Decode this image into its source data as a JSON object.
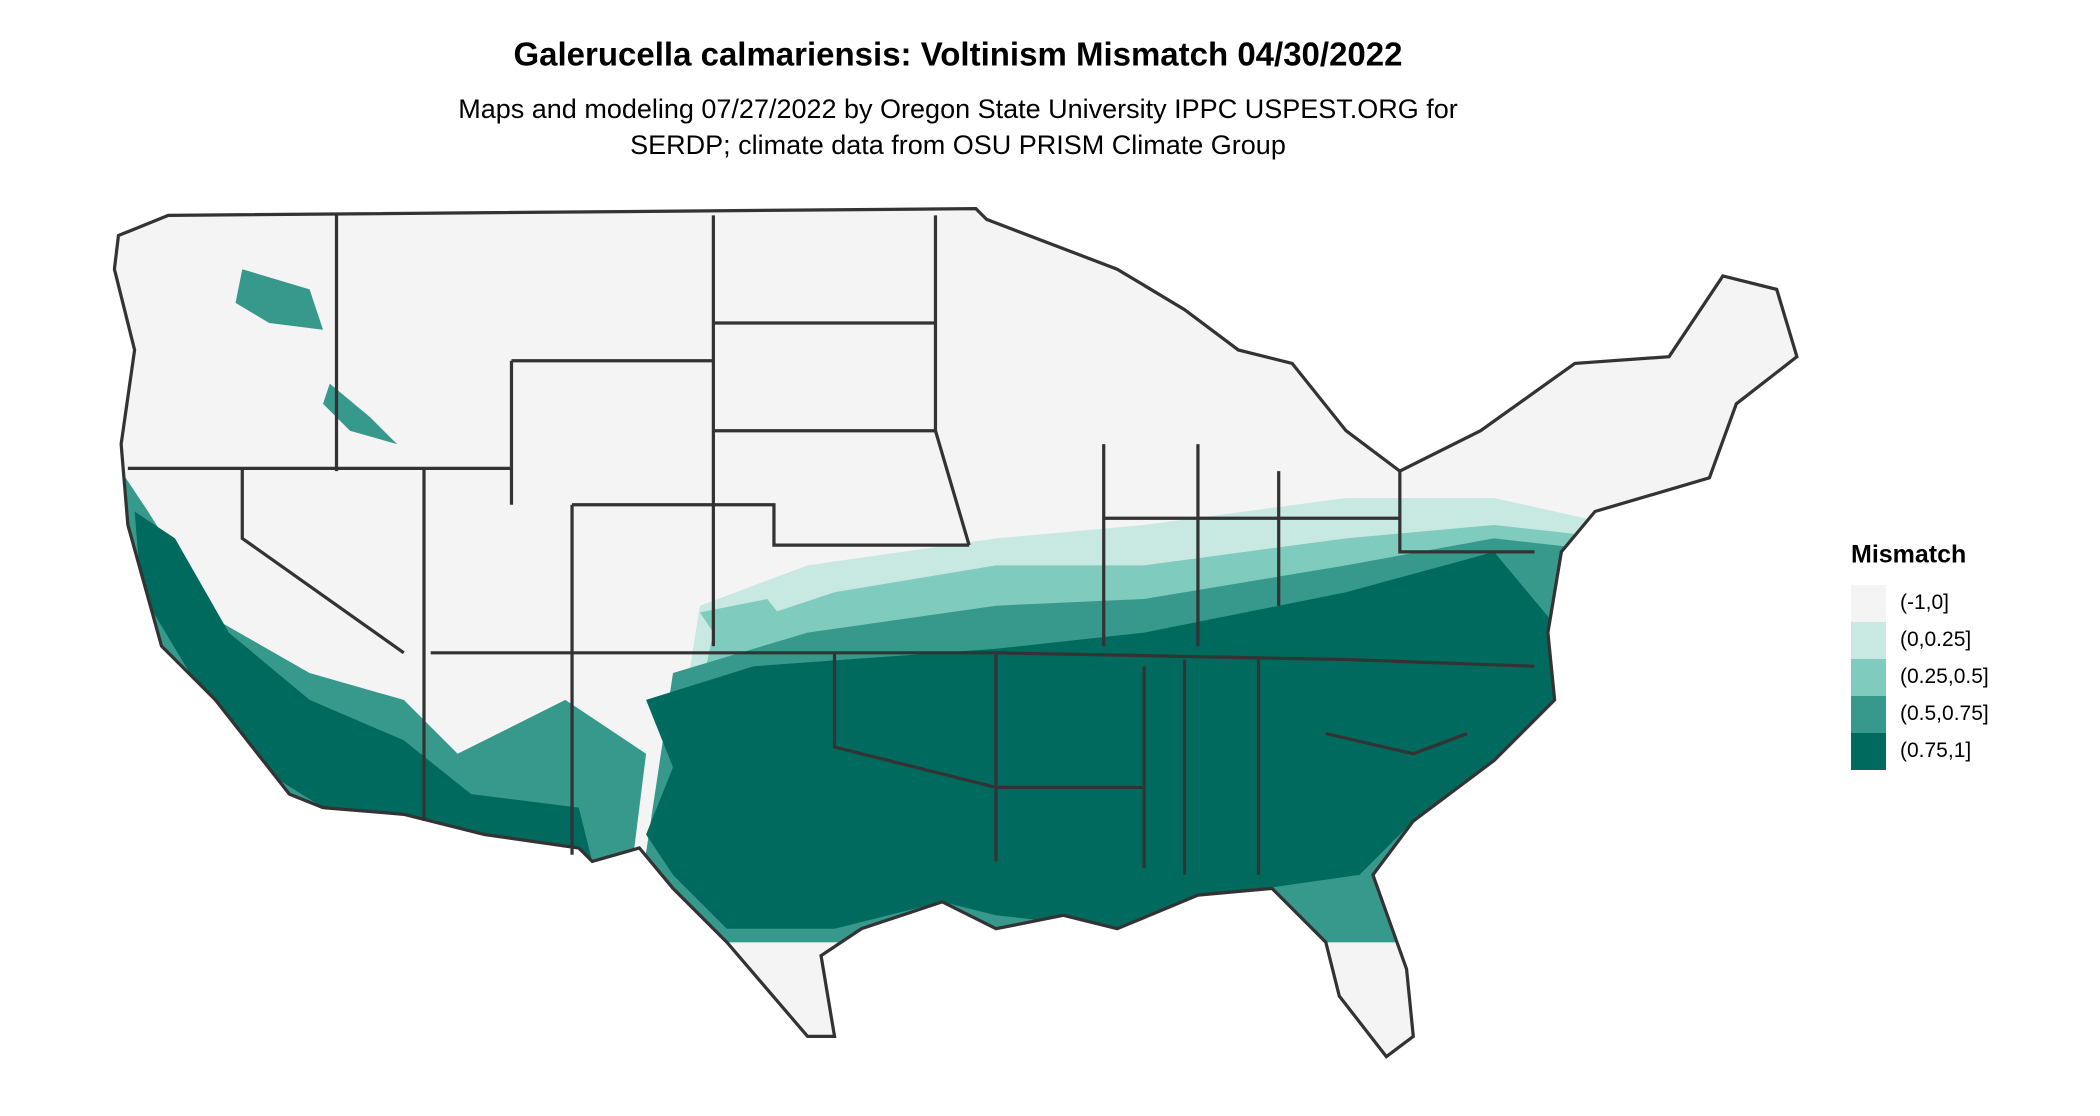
{
  "header": {
    "title": "Galerucella calmariensis: Voltinism Mismatch 04/30/2022",
    "subtitle": [
      "Maps and modeling 07/27/2022 by Oregon State University IPPC USPEST.ORG for",
      "SERDP; climate data from OSU PRISM Climate Group"
    ]
  },
  "legend": {
    "title": "Mismatch",
    "items": [
      {
        "label": "(-1,0]",
        "color": "#f4f4f4"
      },
      {
        "label": "(0,0.25]",
        "color": "#c8e9e1"
      },
      {
        "label": "(0.25,0.5]",
        "color": "#7fcbbd"
      },
      {
        "label": "(0.5,0.75]",
        "color": "#37998c"
      },
      {
        "label": "(0.75,1]",
        "color": "#006a5f"
      }
    ]
  }
}
